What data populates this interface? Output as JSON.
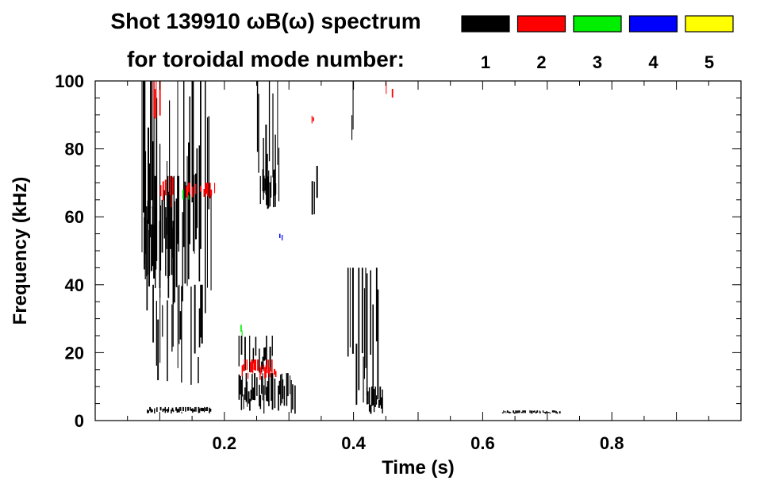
{
  "chart_data": {
    "type": "heatmap",
    "title_line1": "Shot 139910 ωB(ω) spectrum",
    "title_line2": "for toroidal mode number:",
    "xlabel": "Time (s)",
    "ylabel": "Frequency (kHz)",
    "xlim": [
      0,
      1.0
    ],
    "ylim": [
      0,
      100
    ],
    "xticks": [
      {
        "value": 0.2,
        "label": "0.2"
      },
      {
        "value": 0.4,
        "label": "0.4"
      },
      {
        "value": 0.6,
        "label": "0.6"
      },
      {
        "value": 0.8,
        "label": "0.8"
      }
    ],
    "yticks": [
      {
        "value": 0,
        "label": "0"
      },
      {
        "value": 20,
        "label": "20"
      },
      {
        "value": 40,
        "label": "40"
      },
      {
        "value": 60,
        "label": "60"
      },
      {
        "value": 80,
        "label": "80"
      },
      {
        "value": 100,
        "label": "100"
      }
    ],
    "legend_placement": "top-right",
    "legend": [
      {
        "mode": "1",
        "color": "#000000"
      },
      {
        "mode": "2",
        "color": "#ff0000"
      },
      {
        "mode": "3",
        "color": "#00ee00"
      },
      {
        "mode": "4",
        "color": "#0000ff"
      },
      {
        "mode": "5",
        "color": "#ffff00"
      }
    ],
    "regions": [
      {
        "mode": "1",
        "t0": 0.07,
        "t1": 0.185,
        "f0": 30,
        "f1": 100,
        "density": 0.55
      },
      {
        "mode": "1",
        "t0": 0.075,
        "t1": 0.13,
        "f0": 38,
        "f1": 72,
        "density": 0.9
      },
      {
        "mode": "1",
        "t0": 0.085,
        "t1": 0.165,
        "f0": 10,
        "f1": 40,
        "density": 0.4
      },
      {
        "mode": "1",
        "t0": 0.08,
        "t1": 0.18,
        "f0": 2,
        "f1": 4,
        "density": 0.7
      },
      {
        "mode": "1",
        "t0": 0.22,
        "t1": 0.31,
        "f0": 2,
        "f1": 14,
        "density": 0.85
      },
      {
        "mode": "1",
        "t0": 0.22,
        "t1": 0.275,
        "f0": 14,
        "f1": 25,
        "density": 0.55
      },
      {
        "mode": "1",
        "t0": 0.245,
        "t1": 0.285,
        "f0": 60,
        "f1": 100,
        "density": 0.45
      },
      {
        "mode": "1",
        "t0": 0.255,
        "t1": 0.28,
        "f0": 62,
        "f1": 74,
        "density": 0.9
      },
      {
        "mode": "1",
        "t0": 0.26,
        "t1": 0.29,
        "f0": 20,
        "f1": 60,
        "density": 0.25
      },
      {
        "mode": "1",
        "t0": 0.335,
        "t1": 0.345,
        "f0": 57,
        "f1": 75,
        "density": 0.6
      },
      {
        "mode": "1",
        "t0": 0.385,
        "t1": 0.445,
        "f0": 2,
        "f1": 45,
        "density": 0.35
      },
      {
        "mode": "1",
        "t0": 0.42,
        "t1": 0.445,
        "f0": 2,
        "f1": 10,
        "density": 0.85
      },
      {
        "mode": "1",
        "t0": 0.395,
        "t1": 0.4,
        "f0": 80,
        "f1": 100,
        "density": 0.7
      },
      {
        "mode": "1",
        "t0": 0.63,
        "t1": 0.72,
        "f0": 2,
        "f1": 3,
        "density": 0.8
      },
      {
        "mode": "2",
        "t0": 0.095,
        "t1": 0.12,
        "f0": 62,
        "f1": 72,
        "density": 0.6
      },
      {
        "mode": "2",
        "t0": 0.14,
        "t1": 0.185,
        "f0": 65,
        "f1": 70,
        "density": 0.7
      },
      {
        "mode": "2",
        "t0": 0.09,
        "t1": 0.1,
        "f0": 85,
        "f1": 100,
        "density": 0.4
      },
      {
        "mode": "2",
        "t0": 0.225,
        "t1": 0.28,
        "f0": 12,
        "f1": 18,
        "density": 0.55
      },
      {
        "mode": "2",
        "t0": 0.335,
        "t1": 0.34,
        "f0": 87,
        "f1": 90,
        "density": 0.6
      },
      {
        "mode": "2",
        "t0": 0.45,
        "t1": 0.46,
        "f0": 95,
        "f1": 100,
        "density": 0.5
      },
      {
        "mode": "3",
        "t0": 0.135,
        "t1": 0.145,
        "f0": 64,
        "f1": 68,
        "density": 0.5
      },
      {
        "mode": "3",
        "t0": 0.225,
        "t1": 0.23,
        "f0": 25,
        "f1": 30,
        "density": 0.5
      },
      {
        "mode": "4",
        "t0": 0.285,
        "t1": 0.29,
        "f0": 53,
        "f1": 55,
        "density": 0.6
      }
    ]
  }
}
